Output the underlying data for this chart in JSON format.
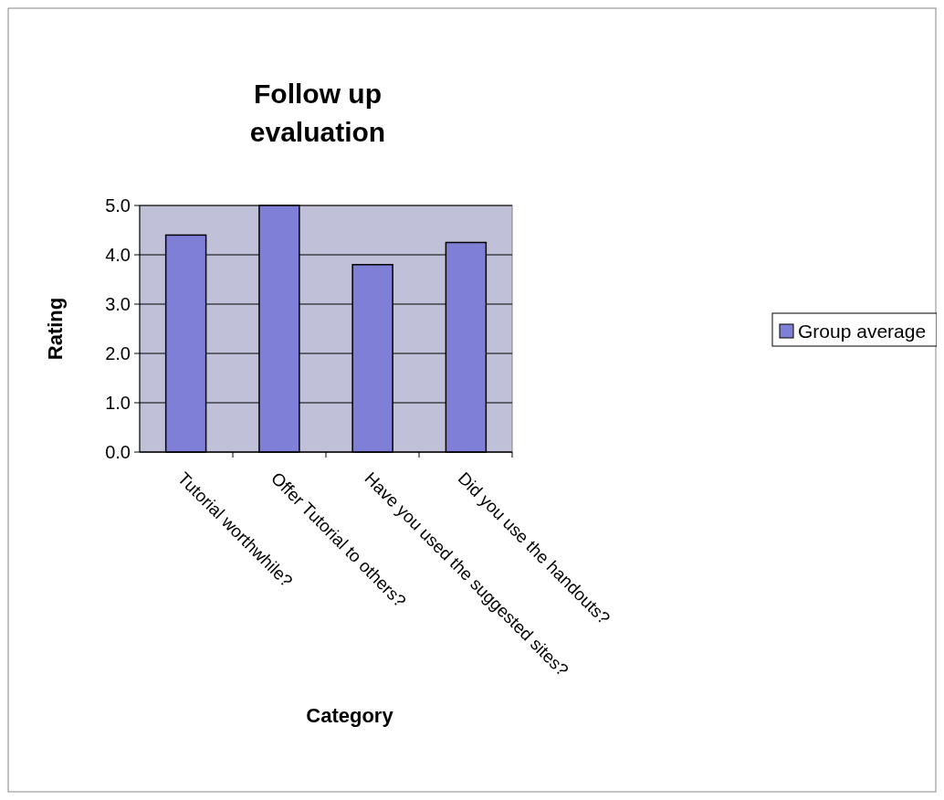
{
  "chart_data": {
    "type": "bar",
    "title": "Follow up evaluation",
    "xlabel": "Category",
    "ylabel": "Rating",
    "categories": [
      "Tutorial worthwhile?",
      "Offer Tutorial to others?",
      "Have you used the suggested sites?",
      "Did you use the handouts?"
    ],
    "series": [
      {
        "name": "Group average",
        "color": "#7f7fd8",
        "values": [
          4.4,
          5.0,
          3.8,
          4.25
        ]
      }
    ],
    "ylim": [
      0,
      5
    ],
    "yticks": [
      {
        "value": 0,
        "label": "0.0"
      },
      {
        "value": 1,
        "label": "1.0"
      },
      {
        "value": 2,
        "label": "2.0"
      },
      {
        "value": 3,
        "label": "3.0"
      },
      {
        "value": 4,
        "label": "4.0"
      },
      {
        "value": 5,
        "label": "5.0"
      }
    ],
    "grid": "y",
    "legend": "right"
  }
}
